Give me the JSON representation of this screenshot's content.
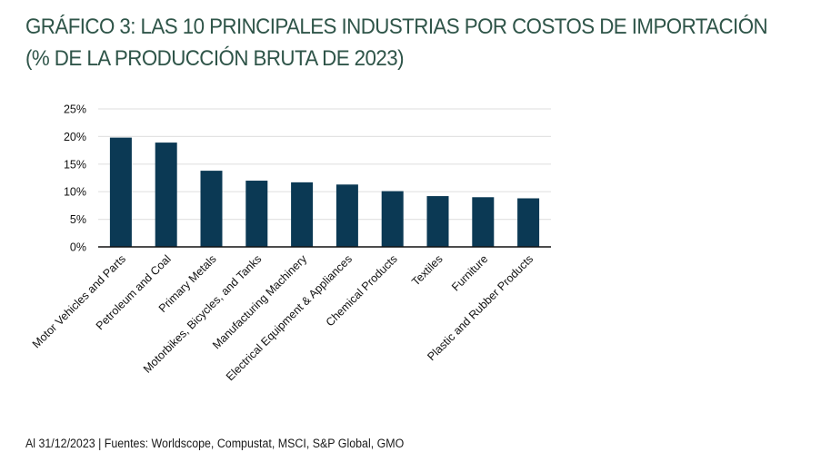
{
  "title": "GRÁFICO 3: LAS 10 PRINCIPALES INDUSTRIAS POR COSTOS DE IMPORTACIÓN (% DE LA PRODUCCIÓN BRUTA DE 2023)",
  "source": "Al 31/12/2023 | Fuentes: Worldscope, Compustat, MSCI, S&P Global, GMO",
  "colors": {
    "bar": "#0b3954",
    "title": "#2f5549",
    "grid": "#e3e3e3",
    "axis": "#111111"
  },
  "chart_data": {
    "type": "bar",
    "title": "GRÁFICO 3: LAS 10 PRINCIPALES INDUSTRIAS POR COSTOS DE IMPORTACIÓN (% DE LA PRODUCCIÓN BRUTA DE 2023)",
    "xlabel": "",
    "ylabel": "",
    "categories": [
      "Motor Vehicles and Parts",
      "Petroleum and Coal",
      "Primary Metals",
      "Motorbikes, Bicycles, and Tanks",
      "Manufacturing Machinery",
      "Electrical Equipment & Appliances",
      "Chemical Products",
      "Textiles",
      "Furniture",
      "Plastic and Rubber Products"
    ],
    "values": [
      19.8,
      18.9,
      13.8,
      12.0,
      11.7,
      11.3,
      10.1,
      9.2,
      9.0,
      8.8
    ],
    "ylim": [
      0,
      25
    ],
    "yticks": [
      0,
      5,
      10,
      15,
      20,
      25
    ],
    "ytick_labels": [
      "0%",
      "5%",
      "10%",
      "15%",
      "20%",
      "25%"
    ],
    "grid": true,
    "legend": "none"
  }
}
